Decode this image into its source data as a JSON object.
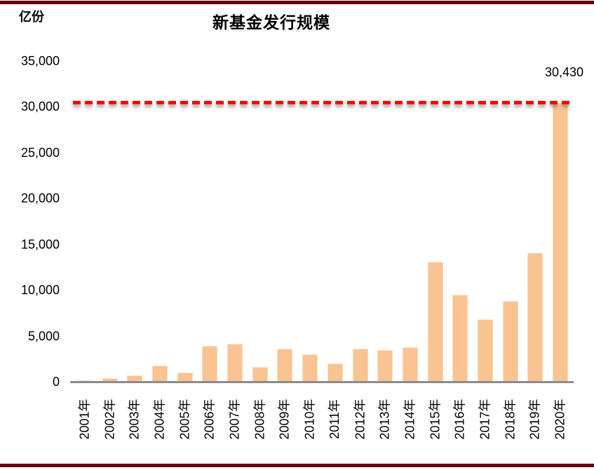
{
  "header": {
    "unit_label": "亿份",
    "title": "新基金发行规模"
  },
  "chart_data": {
    "type": "bar",
    "title": "新基金发行规模",
    "ylabel": "亿份",
    "xlabel": "",
    "categories": [
      "2001年",
      "2002年",
      "2003年",
      "2004年",
      "2005年",
      "2006年",
      "2007年",
      "2008年",
      "2009年",
      "2010年",
      "2011年",
      "2012年",
      "2013年",
      "2014年",
      "2015年",
      "2016年",
      "2017年",
      "2018年",
      "2019年",
      "2020年"
    ],
    "values": [
      130,
      420,
      660,
      1730,
      1030,
      3900,
      4130,
      1600,
      3590,
      2950,
      1990,
      3590,
      3440,
      3720,
      13070,
      9450,
      6800,
      8770,
      14090,
      30430
    ],
    "ylim": [
      0,
      35000
    ],
    "ytick_step": 5000,
    "ytick_labels": [
      "0",
      "5,000",
      "10,000",
      "15,000",
      "20,000",
      "25,000",
      "30,000",
      "35,000"
    ],
    "grid": false,
    "legend": null,
    "reference_line": {
      "value": 30430,
      "label": "30,430",
      "style": "dashed",
      "color": "#FE0000"
    },
    "colors": {
      "bar_fill": "#F9C392",
      "bar_border": "#FBDCBB",
      "axis_line": "#8C8C8C",
      "frame_border": "#640000",
      "text": "#000000"
    }
  }
}
